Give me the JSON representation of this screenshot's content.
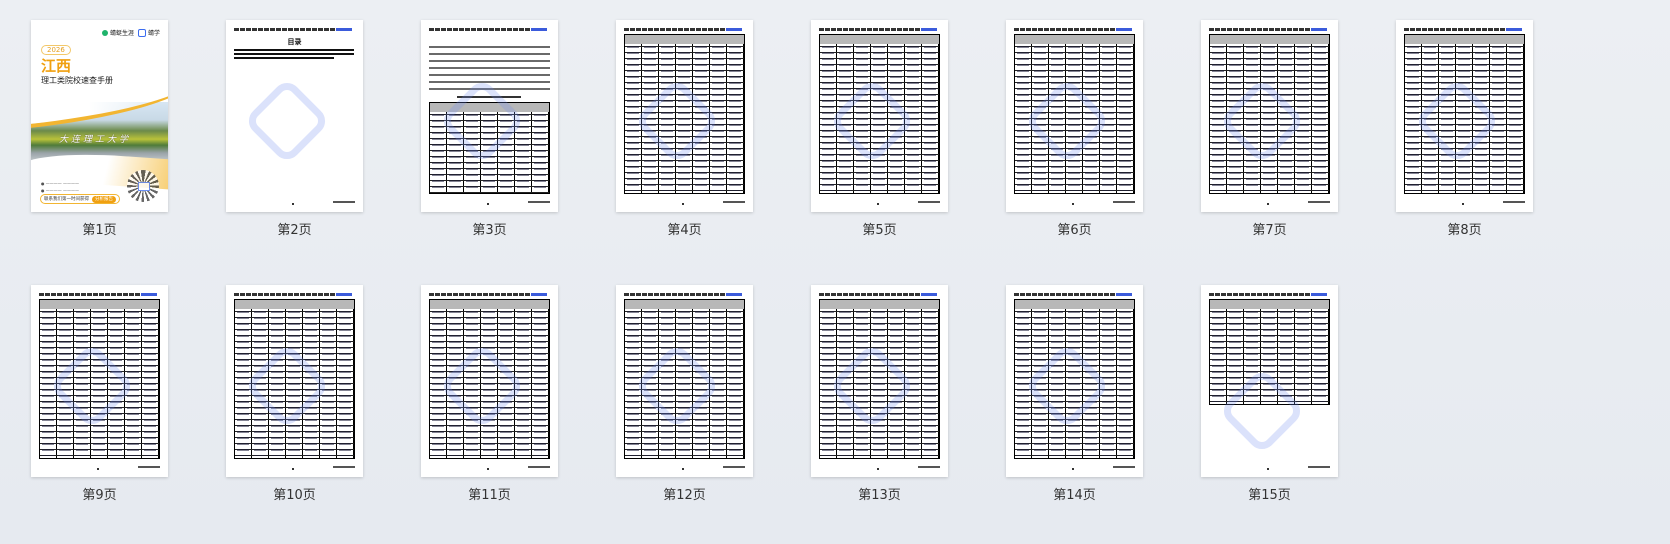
{
  "cover": {
    "brand_1": "蜻蜓生涯",
    "brand_2": "蜻学",
    "year": "2026",
    "province": "江西",
    "subtitle": "理工类院校速查手册",
    "calligraphy": "大连理工大学",
    "cta_text": "联系我们第一时间获得",
    "cta_button": "分析报告"
  },
  "toc": {
    "title": "目录"
  },
  "pages": [
    {
      "label": "第1页",
      "type": "cover"
    },
    {
      "label": "第2页",
      "type": "toc"
    },
    {
      "label": "第3页",
      "type": "intro"
    },
    {
      "label": "第4页",
      "type": "table"
    },
    {
      "label": "第5页",
      "type": "table"
    },
    {
      "label": "第6页",
      "type": "table"
    },
    {
      "label": "第7页",
      "type": "table"
    },
    {
      "label": "第8页",
      "type": "table"
    },
    {
      "label": "第9页",
      "type": "table"
    },
    {
      "label": "第10页",
      "type": "table"
    },
    {
      "label": "第11页",
      "type": "table"
    },
    {
      "label": "第12页",
      "type": "table"
    },
    {
      "label": "第13页",
      "type": "table"
    },
    {
      "label": "第14页",
      "type": "table"
    },
    {
      "label": "第15页",
      "type": "table-short"
    }
  ],
  "colors": {
    "accent": "#f0a010",
    "brand_blue": "#3b6cf0",
    "brand_green": "#1fb36b",
    "background": "#e9edf2"
  }
}
